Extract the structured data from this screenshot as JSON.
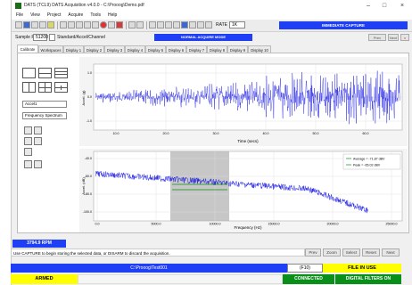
{
  "window": {
    "title": "DATS (TCL9) DATS Acquisition v4.0.0 - C:\\Prooog\\Demo.pdf"
  },
  "menu": [
    "File",
    "View",
    "Project",
    "Acquire",
    "Tools",
    "Help"
  ],
  "toolbar": {
    "rate_label": "RATE",
    "rate_value": "1K",
    "immediate_capture": "IMMEDIATE CAPTURE"
  },
  "sample_row": {
    "sample_rate_label": "Sample Rate",
    "sample_rate_value": "51200",
    "mode_label": "Standard/Accel/Channel",
    "normal_label": "NORMAL ACQUIRE MODE",
    "prev_button": "Prev",
    "next_button": "Next"
  },
  "tabs": [
    "Calibrate",
    "Workspaces",
    "Display 1",
    "Display 2",
    "Display 3",
    "Display 4",
    "Display 5",
    "Display 6",
    "Display 7",
    "Display 8",
    "Display 9",
    "Display 10"
  ],
  "active_tab": 0,
  "side": {
    "source_value": "Accel1",
    "analysis_value": "Frequency Spectrum"
  },
  "top_chart": {
    "ylabel": "Accel. (g)",
    "xlabel": "Time (secs)",
    "xticks": [
      "10.0",
      "20.0",
      "30.0",
      "40.0",
      "50.0",
      "60.0"
    ],
    "yticks": [
      "1.0",
      "0.0",
      "-1.0"
    ],
    "line_color": "#1010e0"
  },
  "bottom_chart": {
    "ylabel": "Accel. (dB)",
    "xlabel": "Frequency (Hz)",
    "xticks": [
      "0.0",
      "5000.0",
      "10000.0",
      "15000.0",
      "20000.0",
      "25000.0"
    ],
    "yticks": [
      "-40.0",
      "-60.0",
      "-80.0",
      "-100.0"
    ],
    "legend": [
      {
        "label": "Average = -71.87 dBV",
        "color": "#0a8f1a"
      },
      {
        "label": "Peak = -65.02 dBV",
        "color": "#0a8f1a"
      }
    ],
    "line_color": "#1010e0",
    "highlight_color": "#b4b4b4"
  },
  "status": {
    "rpm": "3794.9 RPM",
    "info": "Use CAPTURE to begin storing the selected data, or DISARM to discard the acquisition.",
    "nav_buttons": [
      "Prev",
      "Zoom",
      "Select",
      "Reset",
      "Next"
    ],
    "filename": "C:\\Prooog\\Test001",
    "ft_label": "(F10)",
    "file_in_use": "FILE IN USE",
    "armed": "ARMED",
    "connected": "CONNECTED",
    "digital_filters": "DIGITAL FILTERS ON"
  }
}
